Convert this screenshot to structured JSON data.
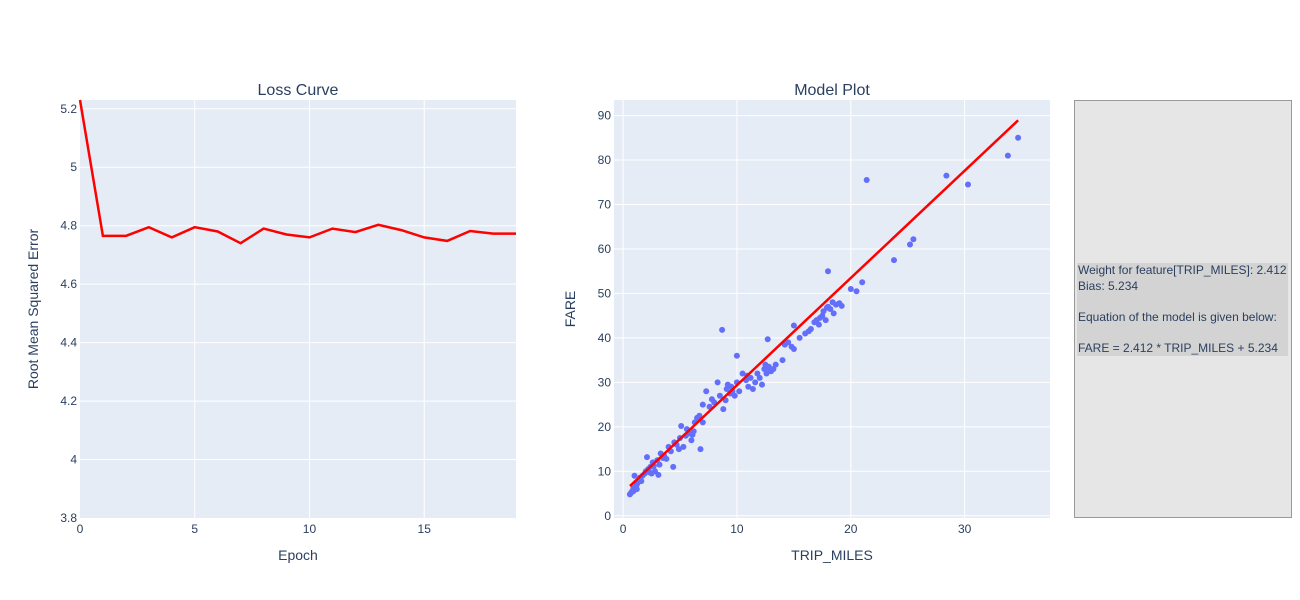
{
  "chart_data": [
    {
      "type": "line",
      "title": "Loss Curve",
      "xlabel": "Epoch",
      "ylabel": "Root Mean Squared Error",
      "xlim": [
        0,
        19
      ],
      "ylim": [
        3.8,
        5.23
      ],
      "xticks": [
        0,
        5,
        10,
        15
      ],
      "yticks": [
        3.8,
        4,
        4.2,
        4.4,
        4.6,
        4.8,
        5,
        5.2
      ],
      "series": [
        {
          "color": "#ff0000",
          "x": [
            0,
            1,
            2,
            3,
            4,
            5,
            6,
            7,
            8,
            9,
            10,
            11,
            12,
            13,
            14,
            15,
            16,
            17,
            18,
            19
          ],
          "y": [
            5.23,
            4.765,
            4.765,
            4.795,
            4.76,
            4.795,
            4.78,
            4.74,
            4.79,
            4.77,
            4.76,
            4.79,
            4.778,
            4.803,
            4.785,
            4.76,
            4.748,
            4.782,
            4.773,
            4.773
          ]
        }
      ]
    },
    {
      "type": "scatter",
      "title": "Model Plot",
      "xlabel": "TRIP_MILES",
      "ylabel": "FARE",
      "xlim": [
        -0.8,
        37.5
      ],
      "ylim": [
        -0.5,
        93.5
      ],
      "xticks": [
        0,
        10,
        20,
        30
      ],
      "yticks": [
        0,
        10,
        20,
        30,
        40,
        50,
        60,
        70,
        80,
        90
      ],
      "points_color": "#636efa",
      "points": [
        [
          0.6,
          4.8
        ],
        [
          0.7,
          5.2
        ],
        [
          0.8,
          5.5
        ],
        [
          0.9,
          6.2
        ],
        [
          1.0,
          6.0
        ],
        [
          1.1,
          6.5
        ],
        [
          1.2,
          7.0
        ],
        [
          1.3,
          7.5
        ],
        [
          1.4,
          8.0
        ],
        [
          1.5,
          8.6
        ],
        [
          1.0,
          9.0
        ],
        [
          1.2,
          6.0
        ],
        [
          1.5,
          8.0
        ],
        [
          1.7,
          9.0
        ],
        [
          1.9,
          9.5
        ],
        [
          2.0,
          10.0
        ],
        [
          2.1,
          13.2
        ],
        [
          2.2,
          10.5
        ],
        [
          2.4,
          11.0
        ],
        [
          2.5,
          9.5
        ],
        [
          2.6,
          12.0
        ],
        [
          2.8,
          10.0
        ],
        [
          3.0,
          12.5
        ],
        [
          3.1,
          9.2
        ],
        [
          3.2,
          11.5
        ],
        [
          3.3,
          14.0
        ],
        [
          3.5,
          13.0
        ],
        [
          3.8,
          12.8
        ],
        [
          4.0,
          15.5
        ],
        [
          4.2,
          14.5
        ],
        [
          4.4,
          11.0
        ],
        [
          4.5,
          16.5
        ],
        [
          4.7,
          16.0
        ],
        [
          4.9,
          15.0
        ],
        [
          5.0,
          17.5
        ],
        [
          5.1,
          20.2
        ],
        [
          5.3,
          15.5
        ],
        [
          5.5,
          18.0
        ],
        [
          5.8,
          18.5
        ],
        [
          6.0,
          17.0
        ],
        [
          6.2,
          19.0
        ],
        [
          6.3,
          21.0
        ],
        [
          6.5,
          22.0
        ],
        [
          6.7,
          22.5
        ],
        [
          6.8,
          15.0
        ],
        [
          7.0,
          21.0
        ],
        [
          7.0,
          25.0
        ],
        [
          7.3,
          28.0
        ],
        [
          7.6,
          24.5
        ],
        [
          8.0,
          25.5
        ],
        [
          8.3,
          30.0
        ],
        [
          8.5,
          27.0
        ],
        [
          8.7,
          41.8
        ],
        [
          8.8,
          24.0
        ],
        [
          9.0,
          26.0
        ],
        [
          9.1,
          28.5
        ],
        [
          9.2,
          29.5
        ],
        [
          9.4,
          27.5
        ],
        [
          9.6,
          28.0
        ],
        [
          9.8,
          27.0
        ],
        [
          10.0,
          30.0
        ],
        [
          10.0,
          36.0
        ],
        [
          10.2,
          28.0
        ],
        [
          10.5,
          32.0
        ],
        [
          10.8,
          30.5
        ],
        [
          11.0,
          29.0
        ],
        [
          11.2,
          31.0
        ],
        [
          11.4,
          28.5
        ],
        [
          11.6,
          30.0
        ],
        [
          11.8,
          32.0
        ],
        [
          12.0,
          31.0
        ],
        [
          12.2,
          29.5
        ],
        [
          12.4,
          33.0
        ],
        [
          12.5,
          34.0
        ],
        [
          12.6,
          32.0
        ],
        [
          12.7,
          39.7
        ],
        [
          12.8,
          33.5
        ],
        [
          13.0,
          32.5
        ],
        [
          13.2,
          33.0
        ],
        [
          13.4,
          34.0
        ],
        [
          14.0,
          35.0
        ],
        [
          14.2,
          38.5
        ],
        [
          14.5,
          39.0
        ],
        [
          14.8,
          38.0
        ],
        [
          15.0,
          37.5
        ],
        [
          15.0,
          42.8
        ],
        [
          15.5,
          40.0
        ],
        [
          16.0,
          41.0
        ],
        [
          16.5,
          42.0
        ],
        [
          16.8,
          43.5
        ],
        [
          17.0,
          44.0
        ],
        [
          17.2,
          43.0
        ],
        [
          17.3,
          44.5
        ],
        [
          17.5,
          45.0
        ],
        [
          17.6,
          46.0
        ],
        [
          17.8,
          44.0
        ],
        [
          18.0,
          47.0
        ],
        [
          18.0,
          55.0
        ],
        [
          18.2,
          46.5
        ],
        [
          18.4,
          48.0
        ],
        [
          18.5,
          45.5
        ],
        [
          18.7,
          47.5
        ],
        [
          19.0,
          47.8
        ],
        [
          20.0,
          51.0
        ],
        [
          20.5,
          50.5
        ],
        [
          21.0,
          52.5
        ],
        [
          21.4,
          75.5
        ],
        [
          23.8,
          57.5
        ],
        [
          25.2,
          61.0
        ],
        [
          25.5,
          62.2
        ],
        [
          28.4,
          76.5
        ],
        [
          30.3,
          74.5
        ],
        [
          33.8,
          81.0
        ],
        [
          34.7,
          85.0
        ],
        [
          0.9,
          5.5
        ],
        [
          1.6,
          7.8
        ],
        [
          2.3,
          9.8
        ],
        [
          2.7,
          11.2
        ],
        [
          3.6,
          13.5
        ],
        [
          5.6,
          19.5
        ],
        [
          6.1,
          18.2
        ],
        [
          7.8,
          26.2
        ],
        [
          9.5,
          29.0
        ],
        [
          10.9,
          31.5
        ],
        [
          12.9,
          32.8
        ],
        [
          16.3,
          41.5
        ],
        [
          17.9,
          46.8
        ],
        [
          19.2,
          47.2
        ]
      ],
      "fit_line": {
        "color": "#ff0000",
        "x": [
          0.6,
          34.7
        ],
        "y": [
          6.68,
          88.93
        ]
      }
    }
  ],
  "info": {
    "line1": "Weight for feature[TRIP_MILES]: 2.412",
    "line2": "Bias: 5.234",
    "line3": "",
    "line4": "Equation of the model is given below:",
    "line5": "",
    "line6": "FARE = 2.412 * TRIP_MILES + 5.234"
  }
}
